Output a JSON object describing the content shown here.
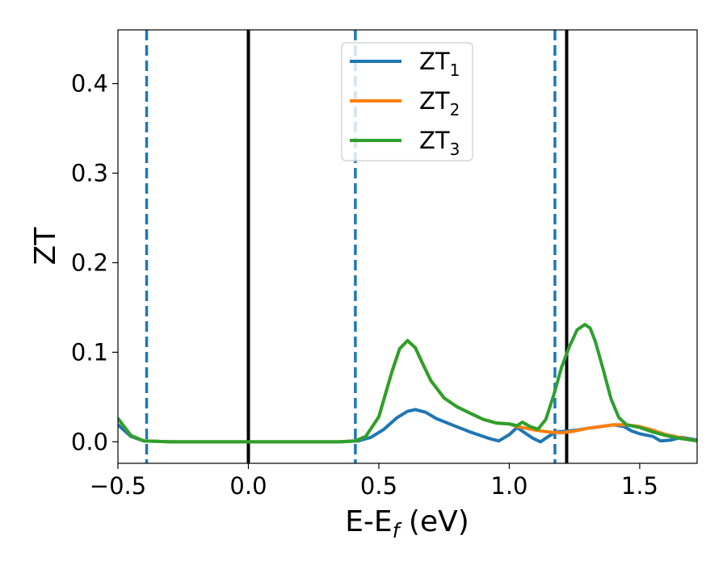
{
  "chart_data": {
    "type": "line",
    "xlabel": "E-E_f (eV)",
    "ylabel": "ZT",
    "xlim": [
      -0.5,
      1.72
    ],
    "ylim": [
      -0.024,
      0.46
    ],
    "x_ticks": [
      -0.5,
      0.0,
      0.5,
      1.0,
      1.5
    ],
    "x_tick_labels": [
      "−0.5",
      "0.0",
      "0.5",
      "1.0",
      "1.5"
    ],
    "y_ticks": [
      0.0,
      0.1,
      0.2,
      0.3,
      0.4
    ],
    "y_tick_labels": [
      "0.0",
      "0.1",
      "0.2",
      "0.3",
      "0.4"
    ],
    "grid": false,
    "legend_position": "top-center",
    "vertical_lines": [
      {
        "x": -0.39,
        "style": "dashed",
        "color": "#1f77b4"
      },
      {
        "x": 0.0,
        "style": "solid",
        "color": "#000000"
      },
      {
        "x": 0.41,
        "style": "dashed",
        "color": "#1f77b4"
      },
      {
        "x": 1.175,
        "style": "dashed",
        "color": "#1f77b4"
      },
      {
        "x": 1.22,
        "style": "solid",
        "color": "#000000"
      }
    ],
    "series": [
      {
        "name": "ZT_1",
        "label_main": "ZT",
        "label_sub": "1",
        "color": "#1f77b4",
        "x": [
          -0.5,
          -0.45,
          -0.4,
          -0.3,
          0.0,
          0.35,
          0.42,
          0.47,
          0.52,
          0.57,
          0.61,
          0.64,
          0.68,
          0.72,
          0.78,
          0.85,
          0.92,
          0.96,
          1.0,
          1.03,
          1.06,
          1.09,
          1.12,
          1.15,
          1.18,
          1.22,
          1.26,
          1.3,
          1.35,
          1.4,
          1.44,
          1.47,
          1.5,
          1.55,
          1.58,
          1.62,
          1.66,
          1.72
        ],
        "y": [
          0.019,
          0.006,
          0.001,
          0.0,
          0.0,
          0.0,
          0.001,
          0.005,
          0.014,
          0.027,
          0.034,
          0.036,
          0.033,
          0.026,
          0.019,
          0.011,
          0.004,
          0.001,
          0.008,
          0.016,
          0.01,
          0.004,
          0.0,
          0.006,
          0.011,
          0.012,
          0.013,
          0.015,
          0.017,
          0.019,
          0.017,
          0.012,
          0.009,
          0.006,
          0.001,
          0.002,
          0.005,
          0.002
        ]
      },
      {
        "name": "ZT_2",
        "label_main": "ZT",
        "label_sub": "2",
        "color": "#ff7f0e",
        "x": [
          -0.5,
          -0.45,
          -0.4,
          -0.3,
          0.0,
          0.35,
          0.41,
          0.45,
          0.5,
          0.55,
          0.58,
          0.61,
          0.64,
          0.67,
          0.7,
          0.75,
          0.8,
          0.85,
          0.9,
          0.95,
          1.0,
          1.03,
          1.05,
          1.1,
          1.15,
          1.2,
          1.25,
          1.3,
          1.35,
          1.4,
          1.45,
          1.5,
          1.55,
          1.6,
          1.65,
          1.72
        ],
        "y": [
          0.026,
          0.007,
          0.001,
          0.0,
          0.0,
          0.0,
          0.001,
          0.006,
          0.028,
          0.078,
          0.104,
          0.113,
          0.105,
          0.086,
          0.068,
          0.049,
          0.039,
          0.032,
          0.025,
          0.021,
          0.02,
          0.017,
          0.016,
          0.013,
          0.011,
          0.01,
          0.012,
          0.015,
          0.017,
          0.019,
          0.019,
          0.017,
          0.013,
          0.008,
          0.005,
          0.001
        ]
      },
      {
        "name": "ZT_3",
        "label_main": "ZT",
        "label_sub": "3",
        "color": "#2ca02c",
        "x": [
          -0.5,
          -0.45,
          -0.4,
          -0.3,
          0.0,
          0.35,
          0.41,
          0.45,
          0.5,
          0.55,
          0.58,
          0.61,
          0.64,
          0.67,
          0.7,
          0.75,
          0.8,
          0.85,
          0.9,
          0.95,
          1.0,
          1.03,
          1.05,
          1.08,
          1.11,
          1.14,
          1.17,
          1.2,
          1.23,
          1.26,
          1.29,
          1.31,
          1.33,
          1.36,
          1.39,
          1.42,
          1.45,
          1.5,
          1.55,
          1.6,
          1.65,
          1.72
        ],
        "y": [
          0.026,
          0.007,
          0.001,
          0.0,
          0.0,
          0.0,
          0.001,
          0.006,
          0.028,
          0.078,
          0.104,
          0.113,
          0.105,
          0.086,
          0.068,
          0.049,
          0.039,
          0.032,
          0.025,
          0.021,
          0.02,
          0.018,
          0.022,
          0.017,
          0.014,
          0.025,
          0.052,
          0.083,
          0.106,
          0.125,
          0.131,
          0.127,
          0.112,
          0.081,
          0.048,
          0.027,
          0.019,
          0.016,
          0.011,
          0.007,
          0.004,
          0.001
        ]
      }
    ]
  }
}
